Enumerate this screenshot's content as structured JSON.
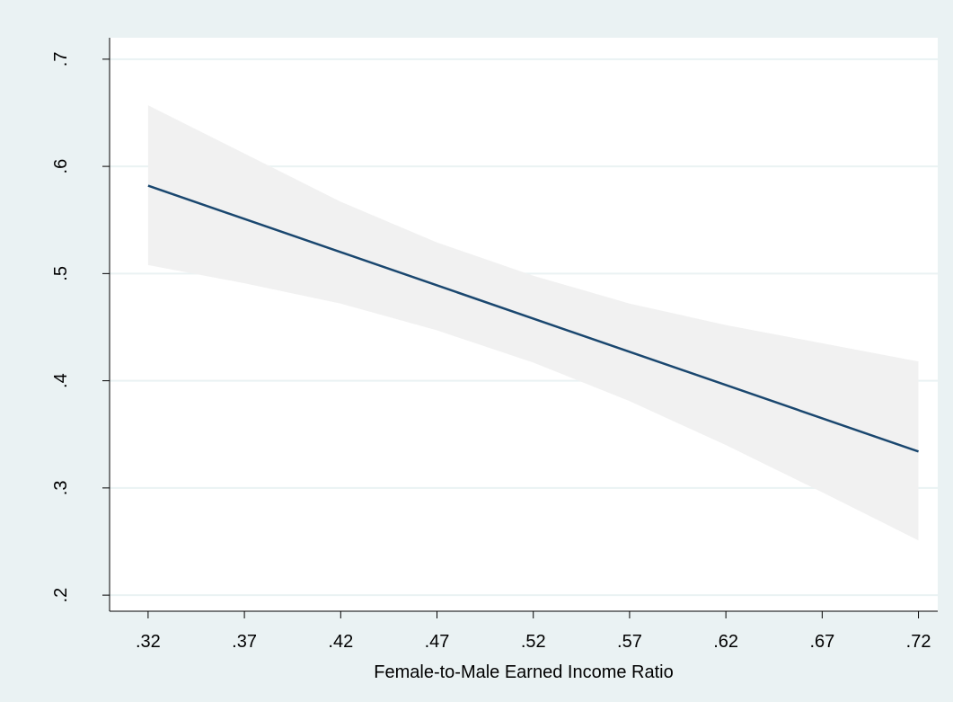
{
  "colors": {
    "outer_background": "#eaf2f3",
    "plot_background": "#ffffff",
    "ci_band": "#f1f1f1",
    "fit_line": "#1a476f",
    "gridline": "#eaf2f3",
    "axis": "#000000",
    "text": "#000000"
  },
  "chart_data": {
    "type": "line",
    "title": "",
    "xlabel": "Female-to-Male Earned Income Ratio",
    "ylabel": "",
    "xlim": [
      0.3,
      0.73
    ],
    "ylim": [
      0.185,
      0.72
    ],
    "x_ticks": [
      0.32,
      0.37,
      0.42,
      0.47,
      0.52,
      0.57,
      0.62,
      0.67,
      0.72
    ],
    "x_tick_labels": [
      ".32",
      ".37",
      ".42",
      ".47",
      ".52",
      ".57",
      ".62",
      ".67",
      ".72"
    ],
    "y_ticks": [
      0.2,
      0.3,
      0.4,
      0.5,
      0.6,
      0.7
    ],
    "y_tick_labels": [
      ".2",
      ".3",
      ".4",
      ".5",
      ".6",
      ".7"
    ],
    "grid": true,
    "legend": "none",
    "series": [
      {
        "kind": "fit_line",
        "x": [
          0.32,
          0.72
        ],
        "y": [
          0.582,
          0.334
        ]
      },
      {
        "kind": "confidence_band",
        "x": [
          0.32,
          0.37,
          0.42,
          0.47,
          0.52,
          0.57,
          0.62,
          0.67,
          0.72
        ],
        "upper": [
          0.657,
          0.612,
          0.567,
          0.529,
          0.498,
          0.472,
          0.452,
          0.435,
          0.418
        ],
        "lower": [
          0.508,
          0.491,
          0.472,
          0.447,
          0.417,
          0.381,
          0.34,
          0.296,
          0.251
        ]
      }
    ]
  }
}
